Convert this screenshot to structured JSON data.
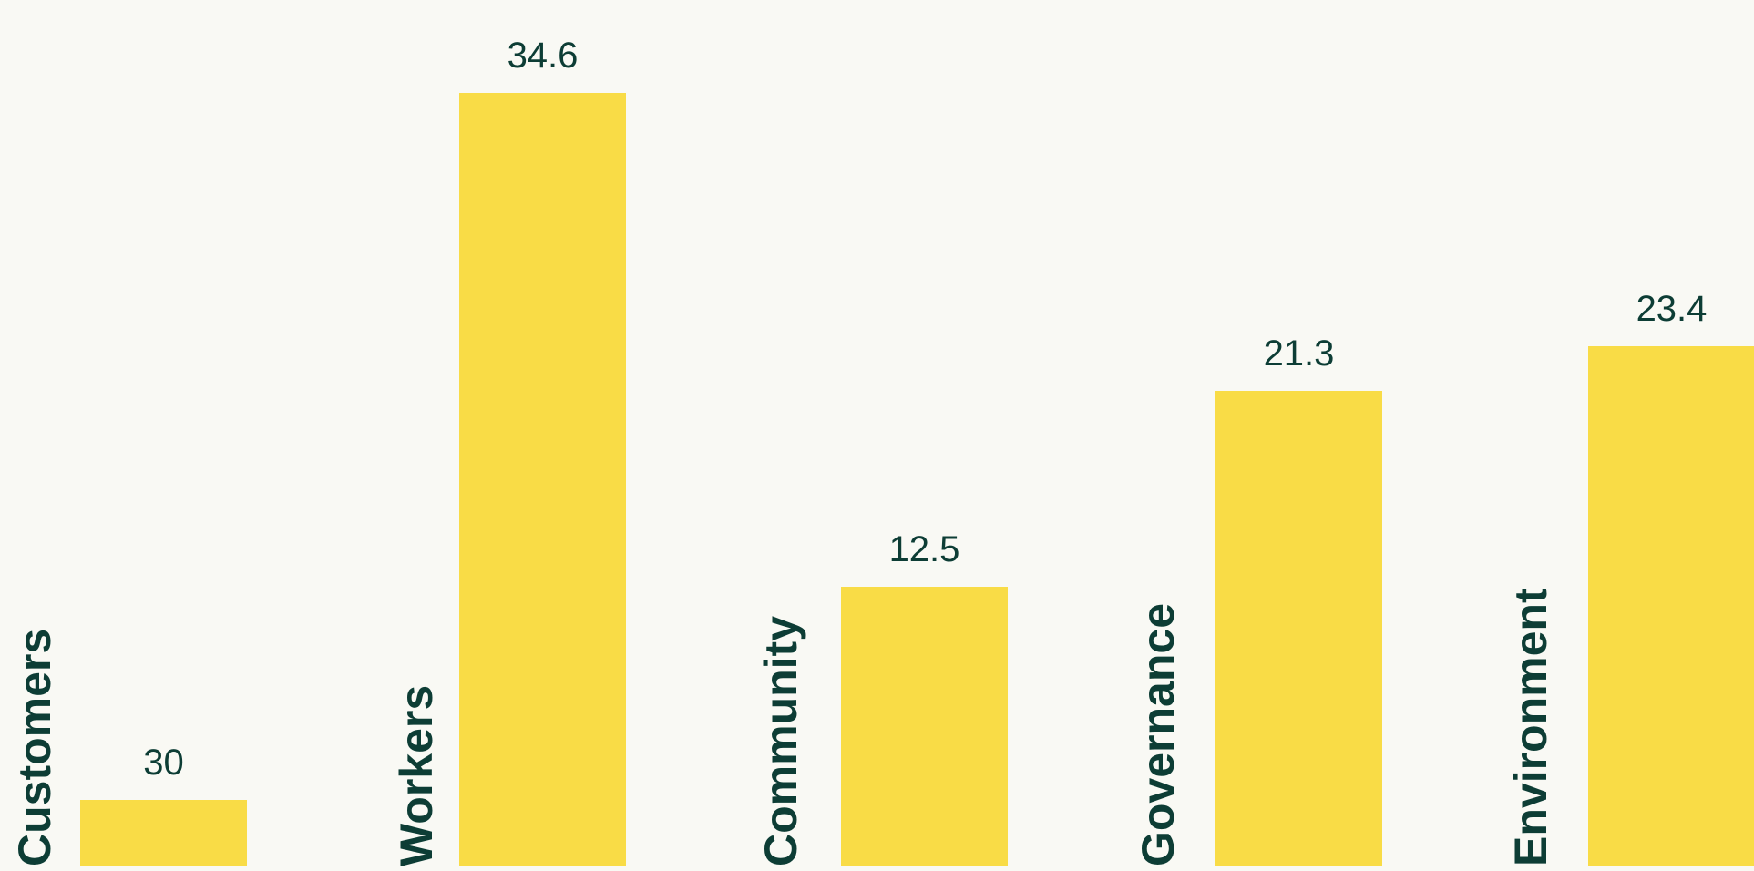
{
  "chart_data": {
    "type": "bar",
    "categories": [
      "Customers",
      "Workers",
      "Community",
      "Governance",
      "Environment"
    ],
    "values": [
      30,
      34.6,
      12.5,
      21.3,
      23.4
    ],
    "value_labels": [
      "30",
      "34.6",
      "12.5",
      "21.3",
      "23.4"
    ],
    "title": "",
    "xlabel": "",
    "ylabel": "",
    "grid": false,
    "legend": "none",
    "colors": {
      "bar": "#f9dc46",
      "text": "#0d3d35",
      "background": "#f9f9f4"
    }
  }
}
